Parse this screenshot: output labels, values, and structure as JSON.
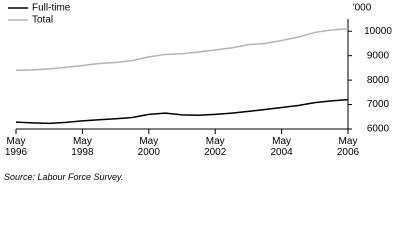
{
  "chart_data": {
    "type": "line",
    "y_label": "'000",
    "source": "Source: Labour Force Survey.",
    "x": [
      1996,
      1996.5,
      1997,
      1997.5,
      1998,
      1998.5,
      1999,
      1999.5,
      2000,
      2000.5,
      2001,
      2001.5,
      2002,
      2002.5,
      2003,
      2003.5,
      2004,
      2004.5,
      2005,
      2005.5,
      2006
    ],
    "series": [
      {
        "name": "Full-time",
        "color": "#000000",
        "values": [
          6280,
          6250,
          6230,
          6270,
          6330,
          6380,
          6420,
          6470,
          6600,
          6650,
          6580,
          6560,
          6600,
          6650,
          6720,
          6800,
          6880,
          6960,
          7080,
          7150,
          7200
        ]
      },
      {
        "name": "Total",
        "color": "#b3b3b3",
        "values": [
          8400,
          8420,
          8460,
          8520,
          8600,
          8680,
          8720,
          8800,
          8950,
          9050,
          9080,
          9150,
          9230,
          9320,
          9450,
          9500,
          9620,
          9760,
          9950,
          10050,
          10100
        ]
      }
    ],
    "xlim": [
      1996,
      2006
    ],
    "xticks": [
      {
        "value": 1996,
        "label": "May 1996"
      },
      {
        "value": 1998,
        "label": "May 1998"
      },
      {
        "value": 2000,
        "label": "May 2000"
      },
      {
        "value": 2002,
        "label": "May 2002"
      },
      {
        "value": 2004,
        "label": "May 2004"
      },
      {
        "value": 2006,
        "label": "May 2006"
      }
    ],
    "ylim": [
      6000,
      10500
    ],
    "yticks": [
      6000,
      7000,
      8000,
      9000,
      10000
    ],
    "legend": "top-left"
  }
}
